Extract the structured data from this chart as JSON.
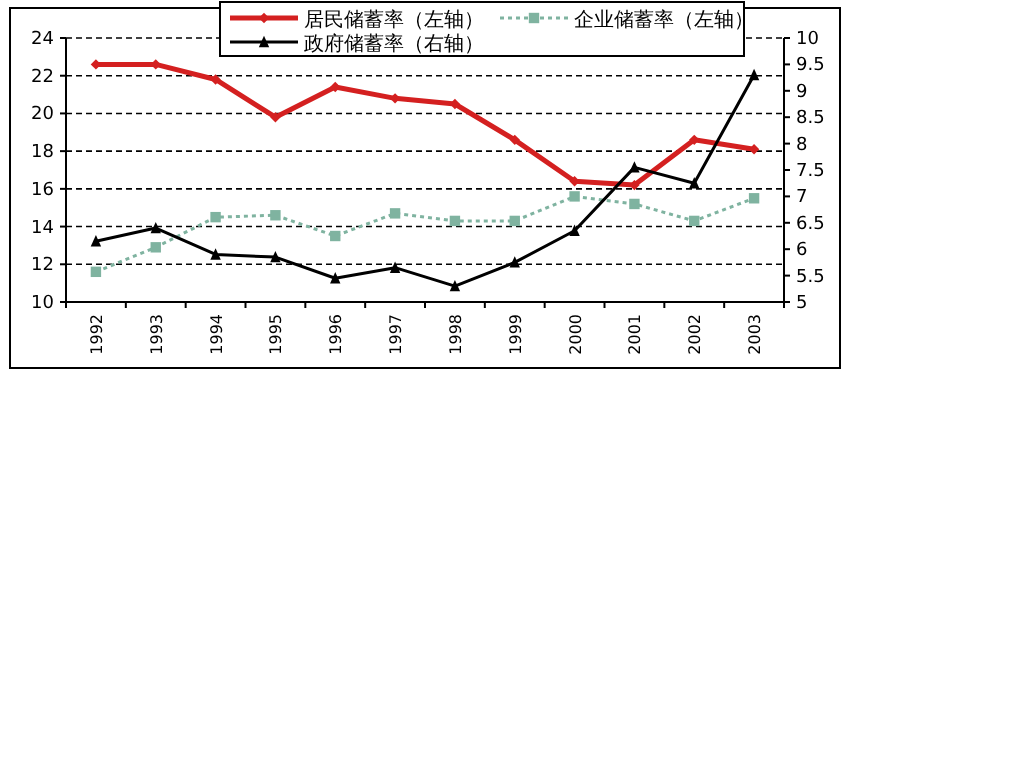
{
  "chart_data": {
    "type": "line",
    "categories": [
      "1992",
      "1993",
      "1994",
      "1995",
      "1996",
      "1997",
      "1998",
      "1999",
      "2000",
      "2001",
      "2002",
      "2003"
    ],
    "series": [
      {
        "name": "居民储蓄率（左轴）",
        "color": "#d42020",
        "marker": "diamond",
        "values": [
          22.6,
          22.6,
          21.8,
          19.8,
          21.4,
          20.8,
          20.5,
          18.6,
          16.4,
          16.2,
          18.6,
          18.1
        ]
      },
      {
        "name": "企业储蓄率（左轴）",
        "color": "#7fb3a0",
        "marker": "square",
        "line_style": "dotted",
        "values": [
          11.6,
          12.9,
          14.5,
          14.6,
          13.5,
          14.7,
          14.3,
          14.3,
          15.6,
          15.2,
          14.3,
          15.5
        ]
      },
      {
        "name": "政府储蓄率（右轴）",
        "color": "#000000",
        "marker": "triangle",
        "axis": "y2",
        "values": [
          6.15,
          6.4,
          5.9,
          5.85,
          5.45,
          5.65,
          5.3,
          5.75,
          6.35,
          7.55,
          7.25,
          9.3
        ]
      }
    ],
    "ylim": [
      10,
      24
    ],
    "yticks": [
      10,
      12,
      14,
      16,
      18,
      20,
      22,
      24
    ],
    "y2lim": [
      5,
      10
    ],
    "y2ticks": [
      5,
      5.5,
      6,
      6.5,
      7,
      7.5,
      8,
      8.5,
      9,
      9.5,
      10
    ],
    "grid": "y",
    "legend": "top"
  }
}
